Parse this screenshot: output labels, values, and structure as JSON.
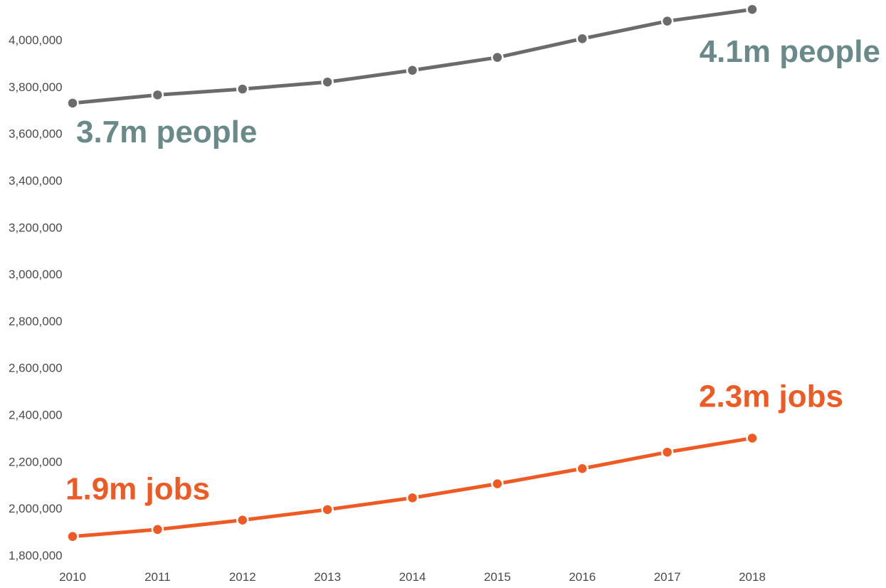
{
  "chart_data": {
    "type": "line",
    "title": "",
    "xlabel": "",
    "ylabel": "",
    "x": [
      2010,
      2011,
      2012,
      2013,
      2014,
      2015,
      2016,
      2017,
      2018
    ],
    "ylim": [
      1800000,
      4000000
    ],
    "yticks": [
      1800000,
      2000000,
      2200000,
      2400000,
      2600000,
      2800000,
      3000000,
      3200000,
      3400000,
      3600000,
      3800000,
      4000000
    ],
    "ytick_labels": [
      "1,800,000",
      "2,000,000",
      "2,200,000",
      "2,400,000",
      "2,600,000",
      "2,800,000",
      "3,000,000",
      "3,200,000",
      "3,400,000",
      "3,600,000",
      "3,800,000",
      "4,000,000"
    ],
    "xtick_labels": [
      "2010",
      "2011",
      "2012",
      "2013",
      "2014",
      "2015",
      "2016",
      "2017",
      "2018"
    ],
    "grid": false,
    "legend": "none",
    "series": [
      {
        "color": "#6b6b6b",
        "values": [
          3730000,
          3765000,
          3790000,
          3820000,
          3870000,
          3925000,
          4005000,
          4080000,
          4130000
        ]
      },
      {
        "color": "#ee5a24",
        "values": [
          1880000,
          1910000,
          1950000,
          1995000,
          2045000,
          2105000,
          2170000,
          2240000,
          2300000
        ]
      }
    ],
    "annotations": [
      {
        "text": "3.7m people",
        "color": "#6a8a8a",
        "anchor": "start-value",
        "series": 0
      },
      {
        "text": "4.1m people",
        "color": "#6a8a8a",
        "anchor": "end-value",
        "series": 0
      },
      {
        "text": "1.9m jobs",
        "color": "#ee5a24",
        "anchor": "start-value",
        "series": 1
      },
      {
        "text": "2.3m jobs",
        "color": "#ee5a24",
        "anchor": "end-value",
        "series": 1
      }
    ]
  }
}
